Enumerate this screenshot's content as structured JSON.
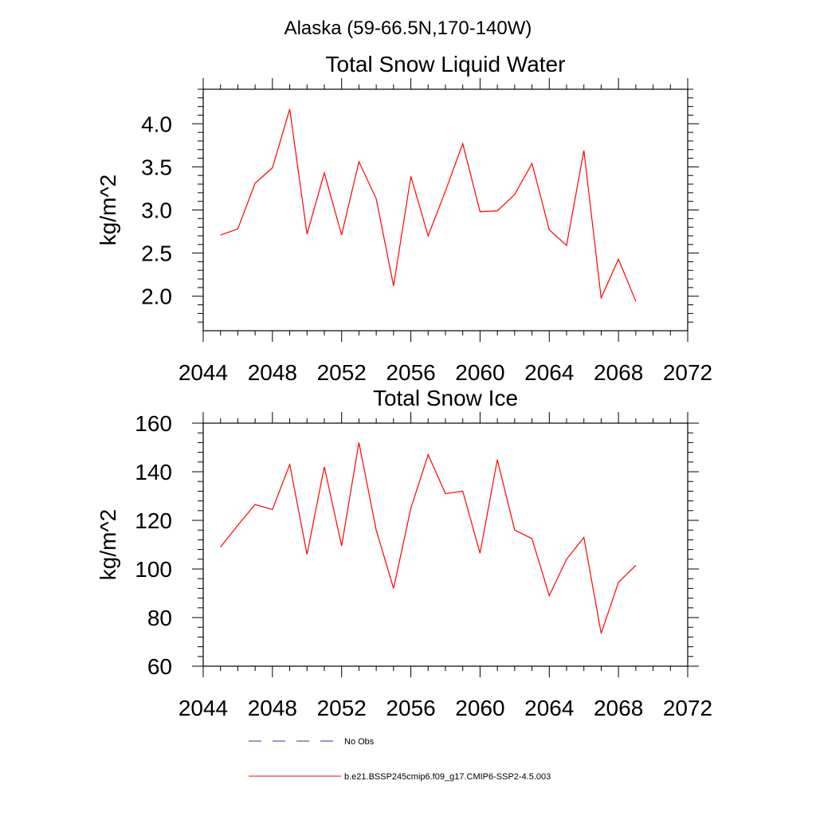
{
  "figure": {
    "title": "Alaska (59-66.5N,170-140W)"
  },
  "colors": {
    "model_line": "#ff0000",
    "obs_line": "#1f3a93",
    "axes": "#000000"
  },
  "legend": {
    "obs_label": "No Obs",
    "model_label": "b.e21.BSSP245cmip6.f09_g17.CMIP6-SSP2-4.5.003"
  },
  "chart_data": [
    {
      "type": "line",
      "title": "Total Snow Liquid Water",
      "xlabel": "",
      "ylabel": "kg/m^2",
      "xlim": [
        2044,
        2072
      ],
      "ylim": [
        1.6,
        4.4
      ],
      "xticks": [
        2044,
        2048,
        2052,
        2056,
        2060,
        2064,
        2068,
        2072
      ],
      "xtick_labels": [
        "2044",
        "2048",
        "2052",
        "2056",
        "2060",
        "2064",
        "2068",
        "2072"
      ],
      "yticks": [
        2.0,
        2.5,
        3.0,
        3.5,
        4.0
      ],
      "ytick_labels": [
        "2.0",
        "2.5",
        "3.0",
        "3.5",
        "4.0"
      ],
      "grid": false,
      "series": [
        {
          "name": "b.e21.BSSP245cmip6.f09_g17.CMIP6-SSP2-4.5.003",
          "x": [
            2045,
            2046,
            2047,
            2048,
            2049,
            2050,
            2051,
            2052,
            2053,
            2054,
            2055,
            2056,
            2057,
            2058,
            2059,
            2060,
            2061,
            2062,
            2063,
            2064,
            2065,
            2066,
            2067,
            2068,
            2069
          ],
          "y": [
            2.71,
            2.78,
            3.31,
            3.49,
            4.17,
            2.72,
            3.43,
            2.71,
            3.56,
            3.13,
            2.12,
            3.39,
            2.7,
            3.22,
            3.77,
            2.98,
            2.99,
            3.18,
            3.54,
            2.77,
            2.59,
            3.69,
            1.98,
            2.43,
            1.94
          ]
        }
      ]
    },
    {
      "type": "line",
      "title": "Total Snow Ice",
      "xlabel": "",
      "ylabel": "kg/m^2",
      "xlim": [
        2044,
        2072
      ],
      "ylim": [
        60,
        160
      ],
      "xticks": [
        2044,
        2048,
        2052,
        2056,
        2060,
        2064,
        2068,
        2072
      ],
      "xtick_labels": [
        "2044",
        "2048",
        "2052",
        "2056",
        "2060",
        "2064",
        "2068",
        "2072"
      ],
      "yticks": [
        60,
        80,
        100,
        120,
        140,
        160
      ],
      "ytick_labels": [
        "60",
        "80",
        "100",
        "120",
        "140",
        "160"
      ],
      "grid": false,
      "series": [
        {
          "name": "b.e21.BSSP245cmip6.f09_g17.CMIP6-SSP2-4.5.003",
          "x": [
            2045,
            2046,
            2047,
            2048,
            2049,
            2050,
            2051,
            2052,
            2053,
            2054,
            2055,
            2056,
            2057,
            2058,
            2059,
            2060,
            2061,
            2062,
            2063,
            2064,
            2065,
            2066,
            2067,
            2068,
            2069
          ],
          "y": [
            109,
            118,
            126.5,
            124.5,
            143,
            106,
            142,
            109.5,
            152,
            116,
            92,
            125,
            147,
            131,
            132,
            106.5,
            145,
            116,
            112.5,
            89,
            104,
            113,
            73.5,
            94.5,
            101.5
          ]
        }
      ]
    }
  ]
}
